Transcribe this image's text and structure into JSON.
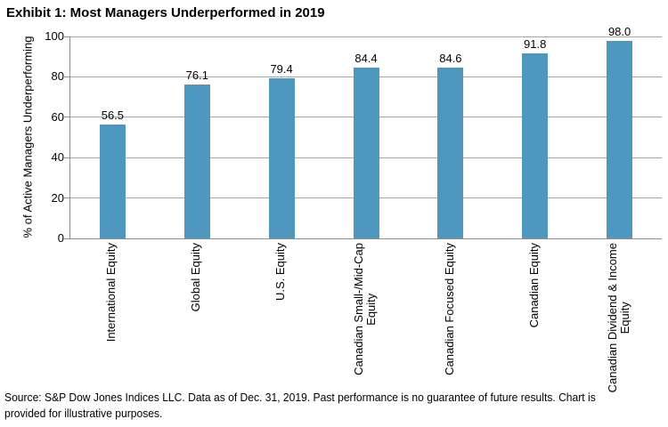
{
  "page": {
    "title": "Exhibit 1: Most Managers Underperformed in 2019",
    "footer": "Source: S&P Dow Jones Indices LLC. Data as of Dec. 31, 2019. Past performance is no guarantee of future results. Chart is\nprovided for illustrative purposes."
  },
  "chart_data": {
    "type": "bar",
    "title": "Exhibit 1: Most Managers Underperformed in 2019",
    "categories": [
      "International Equity",
      "Global Equity",
      "U.S. Equity",
      "Canadian Small-/Mid-Cap\nEquity",
      "Canadian Focused Equity",
      "Canadian Equity",
      "Canadian Dividend & Income\nEquity"
    ],
    "values": [
      56.5,
      76.1,
      79.4,
      84.4,
      84.6,
      91.8,
      98.0
    ],
    "value_labels": [
      "56.5",
      "76.1",
      "79.4",
      "84.4",
      "84.6",
      "91.8",
      "98.0"
    ],
    "xlabel": "",
    "ylabel": "% of Active Managers Underperforming",
    "ylim": [
      0,
      100
    ],
    "yticks": [
      0,
      20,
      40,
      60,
      80,
      100
    ],
    "grid": true,
    "legend": "none",
    "colors": {
      "bar": "#4e97be",
      "gridline": "#a6a6a6",
      "axis": "#8e8e8e",
      "text": "#000000"
    }
  }
}
